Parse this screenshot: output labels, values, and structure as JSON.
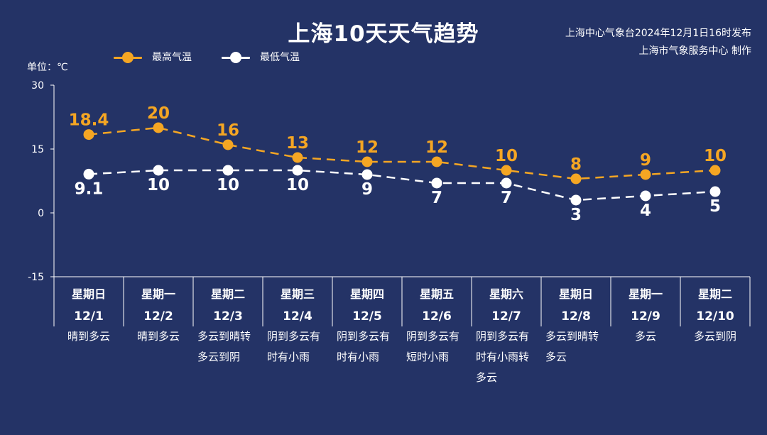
{
  "title": "上海10天天气趋势",
  "issuer": {
    "line1": "上海中心气象台2024年12月1日16时发布",
    "line2": "上海市气象服务中心 制作"
  },
  "unit_label": "单位：℃",
  "legend": {
    "high": "最高气温",
    "low": "最低气温"
  },
  "colors": {
    "background": "#243366",
    "high": "#f5a623",
    "low": "#ffffff",
    "axis": "#ffffff"
  },
  "days": [
    {
      "weekday": "星期日",
      "date": "12/1",
      "weather": "晴到多云"
    },
    {
      "weekday": "星期一",
      "date": "12/2",
      "weather": "晴到多云"
    },
    {
      "weekday": "星期二",
      "date": "12/3",
      "weather": "多云到晴转\n多云到阴"
    },
    {
      "weekday": "星期三",
      "date": "12/4",
      "weather": "阴到多云有\n时有小雨"
    },
    {
      "weekday": "星期四",
      "date": "12/5",
      "weather": "阴到多云有\n时有小雨"
    },
    {
      "weekday": "星期五",
      "date": "12/6",
      "weather": "阴到多云有\n短时小雨"
    },
    {
      "weekday": "星期六",
      "date": "12/7",
      "weather": "阴到多云有\n时有小雨转\n多云"
    },
    {
      "weekday": "星期日",
      "date": "12/8",
      "weather": "多云到晴转\n多云"
    },
    {
      "weekday": "星期一",
      "date": "12/9",
      "weather": "多云"
    },
    {
      "weekday": "星期二",
      "date": "12/10",
      "weather": "多云到阴"
    }
  ],
  "chart_data": {
    "type": "line",
    "title": "上海10天天气趋势",
    "ylabel": "单位：℃",
    "xlabel": "",
    "ylim": [
      -15,
      30
    ],
    "yticks": [
      30,
      15,
      0,
      -15
    ],
    "grid": false,
    "legend_position": "top-left",
    "categories": [
      "12/1",
      "12/2",
      "12/3",
      "12/4",
      "12/5",
      "12/6",
      "12/7",
      "12/8",
      "12/9",
      "12/10"
    ],
    "series": [
      {
        "name": "最高气温",
        "values": [
          18.4,
          20,
          16,
          13,
          12,
          12,
          10,
          8,
          9,
          10
        ],
        "labels": [
          "18.4",
          "20",
          "16",
          "13",
          "12",
          "12",
          "10",
          "8",
          "9",
          "10"
        ]
      },
      {
        "name": "最低气温",
        "values": [
          9.1,
          10,
          10,
          10,
          9,
          7,
          7,
          3,
          4,
          5
        ],
        "labels": [
          "9.1",
          "10",
          "10",
          "10",
          "9",
          "7",
          "7",
          "3",
          "4",
          "5"
        ]
      }
    ]
  }
}
